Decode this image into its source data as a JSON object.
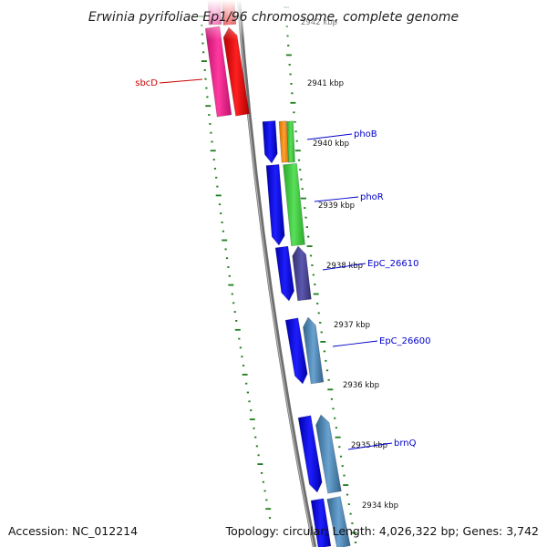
{
  "title": "Erwinia pyrifoliae Ep1/96 chromosome, complete genome",
  "footer": {
    "accession": "Accession: NC_012214",
    "summary": "Topology: circular; Length: 4,026,322 bp; Genes: 3,742"
  },
  "colors": {
    "backbone": "#7d7d7d",
    "tick": "#1e7d1e",
    "label_red": "#cc0000",
    "label_blue": "#0000cc",
    "strand_blue": "#0a0adc",
    "green": "#3ccf3c",
    "orange": "#f08c14",
    "purple": "#4a4896",
    "steel": "#4682b4",
    "pink": "#e8208c",
    "red": "#e61414"
  },
  "kbp_ticks": [
    {
      "label": "2942 kbp",
      "faded": true
    },
    {
      "label": "2941 kbp"
    },
    {
      "label": "2940 kbp"
    },
    {
      "label": "2939 kbp"
    },
    {
      "label": "2938 kbp"
    },
    {
      "label": "2937 kbp"
    },
    {
      "label": "2936 kbp"
    },
    {
      "label": "2935 kbp"
    },
    {
      "label": "2934 kbp"
    }
  ],
  "gene_labels": [
    {
      "name": "sbcD",
      "color": "red"
    },
    {
      "name": "phoB",
      "color": "blue"
    },
    {
      "name": "phoR",
      "color": "blue"
    },
    {
      "name": "EpC_26610",
      "color": "blue"
    },
    {
      "name": "EpC_26600",
      "color": "blue"
    },
    {
      "name": "brnQ",
      "color": "blue"
    }
  ]
}
